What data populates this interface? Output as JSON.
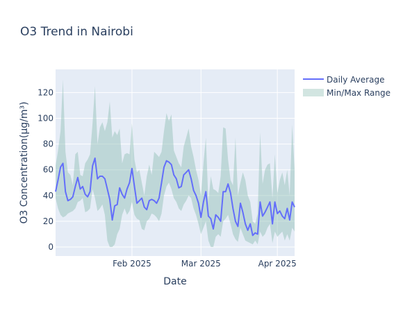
{
  "chart_data": {
    "type": "line",
    "title": "O3 Trend in Nairobi",
    "xlabel": "Date",
    "ylabel": "O3 Concentration(μg/m³)",
    "ylim": [
      -7,
      138
    ],
    "xlim": [
      "2025-01-01",
      "2025-04-08"
    ],
    "yticks": [
      0,
      20,
      40,
      60,
      80,
      100,
      120
    ],
    "xticks": [
      {
        "date": "2025-02-01",
        "label": "Feb 2025"
      },
      {
        "date": "2025-03-01",
        "label": "Mar 2025"
      },
      {
        "date": "2025-04-01",
        "label": "Apr 2025"
      }
    ],
    "grid": true,
    "legend_position": "top-right",
    "colors": {
      "line": "#636efa",
      "band": "#8fbfb4",
      "plot_bg": "#e5ecf6",
      "grid": "#ffffff",
      "text": "#2a3f5f"
    },
    "series": [
      {
        "name": "Daily Average",
        "x": [
          "2025-01-01",
          "2025-01-02",
          "2025-01-03",
          "2025-01-04",
          "2025-01-05",
          "2025-01-06",
          "2025-01-07",
          "2025-01-08",
          "2025-01-09",
          "2025-01-10",
          "2025-01-11",
          "2025-01-12",
          "2025-01-13",
          "2025-01-14",
          "2025-01-15",
          "2025-01-16",
          "2025-01-17",
          "2025-01-18",
          "2025-01-19",
          "2025-01-20",
          "2025-01-21",
          "2025-01-22",
          "2025-01-23",
          "2025-01-24",
          "2025-01-25",
          "2025-01-26",
          "2025-01-27",
          "2025-01-28",
          "2025-01-29",
          "2025-01-30",
          "2025-01-31",
          "2025-02-01",
          "2025-02-02",
          "2025-02-03",
          "2025-02-04",
          "2025-02-05",
          "2025-02-06",
          "2025-02-07",
          "2025-02-08",
          "2025-02-09",
          "2025-02-10",
          "2025-02-11",
          "2025-02-12",
          "2025-02-13",
          "2025-02-14",
          "2025-02-15",
          "2025-02-16",
          "2025-02-17",
          "2025-02-18",
          "2025-02-19",
          "2025-02-20",
          "2025-02-21",
          "2025-02-22",
          "2025-02-23",
          "2025-02-24",
          "2025-02-25",
          "2025-02-26",
          "2025-02-27",
          "2025-02-28",
          "2025-03-01",
          "2025-03-02",
          "2025-03-03",
          "2025-03-04",
          "2025-03-05",
          "2025-03-06",
          "2025-03-07",
          "2025-03-08",
          "2025-03-09",
          "2025-03-10",
          "2025-03-11",
          "2025-03-12",
          "2025-03-13",
          "2025-03-14",
          "2025-03-15",
          "2025-03-16",
          "2025-03-17",
          "2025-03-18",
          "2025-03-19",
          "2025-03-20",
          "2025-03-21",
          "2025-03-22",
          "2025-03-23",
          "2025-03-24",
          "2025-03-25",
          "2025-03-26",
          "2025-03-27",
          "2025-03-28",
          "2025-03-29",
          "2025-03-30",
          "2025-03-31",
          "2025-04-01",
          "2025-04-02",
          "2025-04-03",
          "2025-04-04",
          "2025-04-05",
          "2025-04-06",
          "2025-04-07",
          "2025-04-08"
        ],
        "values": [
          43,
          52,
          62,
          65,
          43,
          36,
          37,
          39,
          47,
          54,
          45,
          47,
          41,
          39,
          43,
          63,
          69,
          53,
          55,
          55,
          53,
          45,
          37,
          21,
          32,
          33,
          46,
          41,
          38,
          45,
          50,
          61,
          47,
          34,
          36,
          38,
          31,
          29,
          36,
          37,
          36,
          34,
          38,
          50,
          62,
          67,
          66,
          64,
          56,
          53,
          46,
          47,
          56,
          58,
          60,
          53,
          44,
          40,
          34,
          23,
          35,
          43,
          24,
          22,
          14,
          25,
          23,
          20,
          43,
          43,
          49,
          42,
          30,
          20,
          16,
          34,
          27,
          18,
          13,
          18,
          9,
          11,
          10,
          35,
          24,
          27,
          31,
          35,
          18,
          35,
          26,
          28,
          24,
          22,
          30,
          21,
          35,
          31
        ]
      },
      {
        "name": "Min/Max Range",
        "min": [
          38,
          30,
          25,
          23,
          24,
          26,
          27,
          28,
          30,
          35,
          36,
          38,
          27,
          28,
          30,
          45,
          38,
          28,
          30,
          33,
          25,
          5,
          0,
          0,
          2,
          10,
          14,
          25,
          30,
          25,
          28,
          35,
          25,
          22,
          21,
          14,
          13,
          20,
          22,
          26,
          25,
          23,
          20,
          26,
          40,
          47,
          50,
          45,
          38,
          35,
          30,
          28,
          33,
          36,
          40,
          38,
          30,
          25,
          18,
          10,
          15,
          20,
          5,
          0,
          0,
          8,
          10,
          8,
          20,
          22,
          25,
          18,
          10,
          6,
          4,
          15,
          10,
          5,
          4,
          3,
          2,
          5,
          2,
          12,
          8,
          10,
          15,
          18,
          3,
          12,
          8,
          10,
          12,
          5,
          10,
          5,
          15,
          12
        ],
        "max": [
          63,
          75,
          90,
          130,
          74,
          58,
          56,
          48,
          72,
          74,
          56,
          55,
          65,
          68,
          72,
          96,
          125,
          80,
          93,
          97,
          90,
          97,
          113,
          85,
          90,
          87,
          92,
          65,
          72,
          73,
          72,
          96,
          68,
          58,
          60,
          50,
          40,
          55,
          64,
          56,
          74,
          72,
          70,
          74,
          90,
          104,
          98,
          103,
          75,
          70,
          65,
          62,
          78,
          85,
          92,
          78,
          70,
          60,
          52,
          40,
          65,
          85,
          35,
          55,
          45,
          44,
          42,
          55,
          93,
          92,
          68,
          52,
          48,
          85,
          40,
          50,
          58,
          52,
          40,
          35,
          20,
          18,
          26,
          89,
          49,
          60,
          64,
          65,
          38,
          72,
          42,
          52,
          58,
          48,
          60,
          40,
          95,
          60
        ]
      }
    ]
  }
}
